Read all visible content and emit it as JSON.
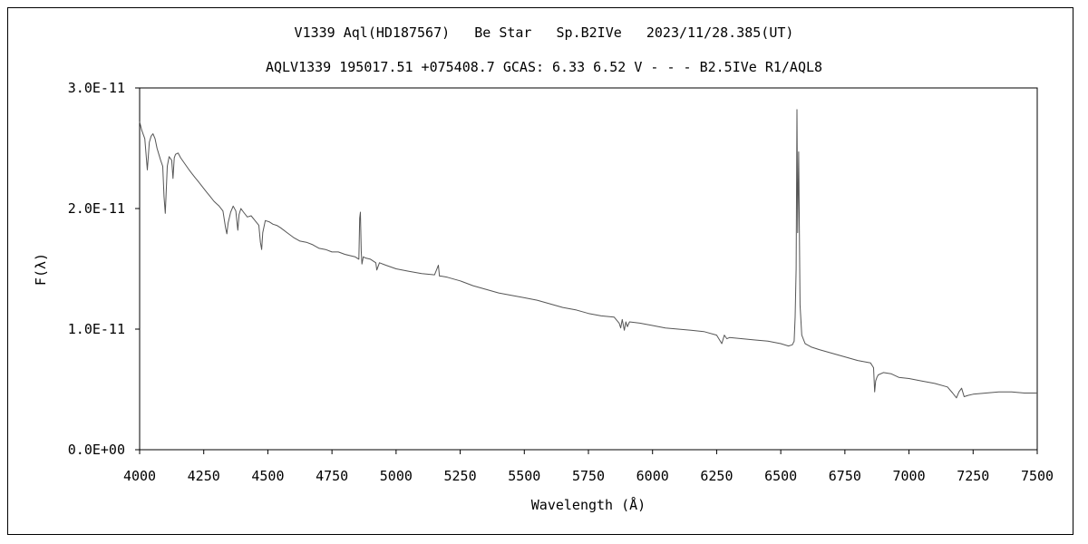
{
  "chart_data": {
    "type": "line",
    "title": "V1339 Aql(HD187567)   Be Star   Sp.B2IVe   2023/11/28.385(UT)",
    "subtitle": "AQLV1339 195017.51 +075408.7 GCAS: 6.33 6.52 V - - - B2.5IVe R1/AQL8",
    "xlabel": "Wavelength (Å)",
    "ylabel": "F(λ)",
    "xlim": [
      4000,
      7500
    ],
    "ylim": [
      0,
      3e-11
    ],
    "x_ticks": [
      4000,
      4250,
      4500,
      4750,
      5000,
      5250,
      5500,
      5750,
      6000,
      6250,
      6500,
      6750,
      7000,
      7250,
      7500
    ],
    "y_ticks": [
      {
        "value": 0,
        "label": "0.0E+00"
      },
      {
        "value": 1e-11,
        "label": "1.0E-11"
      },
      {
        "value": 2e-11,
        "label": "2.0E-11"
      },
      {
        "value": 3e-11,
        "label": "3.0E-11"
      }
    ],
    "grid": false,
    "legend": "none",
    "series": [
      {
        "color": "#555555",
        "x": [
          4000,
          4008,
          4020,
          4030,
          4038,
          4045,
          4052,
          4060,
          4068,
          4075,
          4082,
          4090,
          4095,
          4100,
          4103,
          4108,
          4115,
          4125,
          4130,
          4135,
          4140,
          4150,
          4160,
          4170,
          4180,
          4190,
          4200,
          4215,
          4230,
          4245,
          4260,
          4275,
          4290,
          4300,
          4310,
          4325,
          4335,
          4340,
          4345,
          4355,
          4365,
          4375,
          4383,
          4388,
          4395,
          4405,
          4420,
          4435,
          4450,
          4465,
          4471,
          4476,
          4480,
          4490,
          4505,
          4520,
          4535,
          4550,
          4575,
          4600,
          4625,
          4650,
          4675,
          4700,
          4725,
          4750,
          4775,
          4800,
          4820,
          4840,
          4855,
          4858,
          4861,
          4864,
          4867,
          4872,
          4880,
          4900,
          4921,
          4925,
          4935,
          4960,
          5000,
          5050,
          5100,
          5150,
          5165,
          5169,
          5175,
          5200,
          5250,
          5300,
          5350,
          5400,
          5450,
          5500,
          5550,
          5600,
          5650,
          5700,
          5750,
          5800,
          5850,
          5870,
          5876,
          5882,
          5890,
          5896,
          5902,
          5910,
          5950,
          6000,
          6050,
          6100,
          6150,
          6200,
          6250,
          6270,
          6280,
          6290,
          6300,
          6350,
          6400,
          6450,
          6500,
          6530,
          6545,
          6552,
          6556,
          6560,
          6563,
          6566,
          6570,
          6575,
          6582,
          6595,
          6620,
          6650,
          6700,
          6750,
          6800,
          6850,
          6862,
          6866,
          6870,
          6875,
          6880,
          6900,
          6930,
          6960,
          7000,
          7050,
          7100,
          7150,
          7170,
          7185,
          7195,
          7205,
          7215,
          7230,
          7250,
          7300,
          7350,
          7400,
          7450,
          7500
        ],
        "y": [
          2.72e-11,
          2.65e-11,
          2.58e-11,
          2.32e-11,
          2.55e-11,
          2.6e-11,
          2.62e-11,
          2.58e-11,
          2.5e-11,
          2.45e-11,
          2.4e-11,
          2.35e-11,
          2.1e-11,
          1.96e-11,
          2.1e-11,
          2.35e-11,
          2.43e-11,
          2.4e-11,
          2.25e-11,
          2.42e-11,
          2.45e-11,
          2.46e-11,
          2.42e-11,
          2.39e-11,
          2.36e-11,
          2.33e-11,
          2.3e-11,
          2.26e-11,
          2.22e-11,
          2.18e-11,
          2.14e-11,
          2.1e-11,
          2.06e-11,
          2.04e-11,
          2.02e-11,
          1.98e-11,
          1.84e-11,
          1.79e-11,
          1.88e-11,
          1.97e-11,
          2.02e-11,
          1.98e-11,
          1.82e-11,
          1.95e-11,
          2e-11,
          1.97e-11,
          1.93e-11,
          1.94e-11,
          1.9e-11,
          1.86e-11,
          1.72e-11,
          1.66e-11,
          1.8e-11,
          1.9e-11,
          1.89e-11,
          1.87e-11,
          1.86e-11,
          1.84e-11,
          1.8e-11,
          1.76e-11,
          1.73e-11,
          1.72e-11,
          1.7e-11,
          1.67e-11,
          1.66e-11,
          1.64e-11,
          1.64e-11,
          1.62e-11,
          1.61e-11,
          1.6e-11,
          1.58e-11,
          1.92e-11,
          1.97e-11,
          1.65e-11,
          1.54e-11,
          1.6e-11,
          1.59e-11,
          1.58e-11,
          1.55e-11,
          1.49e-11,
          1.55e-11,
          1.53e-11,
          1.5e-11,
          1.48e-11,
          1.46e-11,
          1.45e-11,
          1.53e-11,
          1.44e-11,
          1.44e-11,
          1.43e-11,
          1.4e-11,
          1.36e-11,
          1.33e-11,
          1.3e-11,
          1.28e-11,
          1.26e-11,
          1.24e-11,
          1.21e-11,
          1.18e-11,
          1.16e-11,
          1.13e-11,
          1.11e-11,
          1.1e-11,
          1.05e-11,
          1.01e-11,
          1.08e-11,
          9.9e-12,
          1.06e-11,
          1.02e-11,
          1.06e-11,
          1.05e-11,
          1.03e-11,
          1.01e-11,
          1e-11,
          9.9e-12,
          9.8e-12,
          9.5e-12,
          8.8e-12,
          9.5e-12,
          9.2e-12,
          9.3e-12,
          9.2e-12,
          9.1e-12,
          9e-12,
          8.8e-12,
          8.6e-12,
          8.7e-12,
          9e-12,
          1.1e-11,
          1.5e-11,
          2.82e-11,
          1.8e-11,
          2.47e-11,
          1.2e-11,
          9.5e-12,
          8.8e-12,
          8.5e-12,
          8.3e-12,
          8e-12,
          7.7e-12,
          7.4e-12,
          7.2e-12,
          6.8e-12,
          4.8e-12,
          5.7e-12,
          6e-12,
          6.2e-12,
          6.4e-12,
          6.3e-12,
          6e-12,
          5.9e-12,
          5.7e-12,
          5.5e-12,
          5.2e-12,
          4.7e-12,
          4.3e-12,
          4.8e-12,
          5.1e-12,
          4.4e-12,
          4.5e-12,
          4.6e-12,
          4.7e-12,
          4.8e-12,
          4.8e-12,
          4.7e-12,
          4.7e-12
        ]
      }
    ]
  }
}
